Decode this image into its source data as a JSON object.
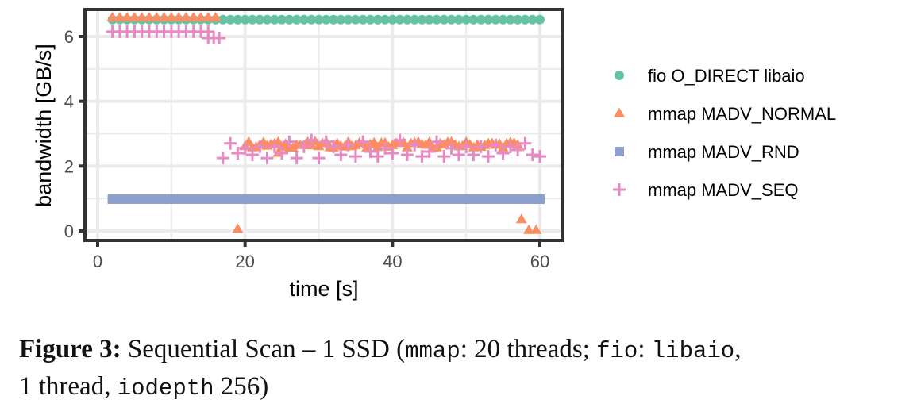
{
  "chart_data": {
    "type": "scatter",
    "title": "",
    "xlabel": "time [s]",
    "ylabel": "bandwidth [GB/s]",
    "xlim": [
      -1.5,
      63
    ],
    "ylim": [
      -0.3,
      6.8
    ],
    "xticks": [
      0,
      20,
      40,
      60
    ],
    "yticks": [
      0,
      2,
      4,
      6
    ],
    "grid": true,
    "legend_position": "right",
    "series": [
      {
        "name": "fio O_DIRECT libaio",
        "marker": "circle",
        "color": "#66c2a5",
        "x_range": [
          2,
          60
        ],
        "step": 1,
        "value": 6.52
      },
      {
        "name": "mmap MADV_NORMAL",
        "marker": "triangle",
        "color": "#fc8d62",
        "segments": [
          {
            "x_range": [
              2,
              16
            ],
            "step": 1,
            "value": 6.58
          },
          {
            "x_range": [
              20,
              57
            ],
            "step": 0.5,
            "value": 2.65,
            "jitter": 0.1
          }
        ],
        "outliers": [
          {
            "x": 19,
            "y": 0.05
          },
          {
            "x": 57.5,
            "y": 0.35
          },
          {
            "x": 58.5,
            "y": 0.02
          },
          {
            "x": 59.5,
            "y": 0.02
          },
          {
            "x": 24.5,
            "y": 2.4
          }
        ]
      },
      {
        "name": "mmap MADV_RND",
        "marker": "square",
        "color": "#8da0cb",
        "x_range": [
          2,
          60
        ],
        "step": 0.5,
        "value": 0.98
      },
      {
        "name": "mmap MADV_SEQ",
        "marker": "plus",
        "color": "#e78ac3",
        "segments": [
          {
            "x_range": [
              2,
              15
            ],
            "step": 1,
            "value": 6.15
          },
          {
            "x_range": [
              15,
              16.5
            ],
            "step": 0.75,
            "value": 5.95
          }
        ],
        "points": [
          [
            17,
            2.25
          ],
          [
            18,
            2.7
          ],
          [
            19,
            2.4
          ],
          [
            20,
            2.55
          ],
          [
            21,
            2.35
          ],
          [
            22,
            2.6
          ],
          [
            23,
            2.25
          ],
          [
            24,
            2.6
          ],
          [
            25,
            2.4
          ],
          [
            26,
            2.75
          ],
          [
            27,
            2.25
          ],
          [
            28,
            2.6
          ],
          [
            29,
            2.8
          ],
          [
            30,
            2.25
          ],
          [
            31,
            2.75
          ],
          [
            32,
            2.6
          ],
          [
            33,
            2.35
          ],
          [
            34,
            2.65
          ],
          [
            35,
            2.3
          ],
          [
            36,
            2.75
          ],
          [
            37,
            2.45
          ],
          [
            38,
            2.3
          ],
          [
            39,
            2.55
          ],
          [
            40,
            2.4
          ],
          [
            41,
            2.8
          ],
          [
            42,
            2.35
          ],
          [
            43,
            2.65
          ],
          [
            44,
            2.3
          ],
          [
            45,
            2.45
          ],
          [
            46,
            2.75
          ],
          [
            47,
            2.3
          ],
          [
            48,
            2.55
          ],
          [
            49,
            2.35
          ],
          [
            50,
            2.6
          ],
          [
            51,
            2.35
          ],
          [
            52,
            2.6
          ],
          [
            53,
            2.3
          ],
          [
            54,
            2.65
          ],
          [
            55,
            2.4
          ],
          [
            56,
            2.6
          ],
          [
            57,
            2.5
          ],
          [
            58,
            2.7
          ],
          [
            59,
            2.35
          ],
          [
            60,
            2.3
          ]
        ]
      }
    ]
  },
  "legend": {
    "items": [
      {
        "label": "fio O_DIRECT libaio",
        "marker": "circle",
        "color": "#66c2a5"
      },
      {
        "label": "mmap MADV_NORMAL",
        "marker": "triangle",
        "color": "#fc8d62"
      },
      {
        "label": "mmap MADV_RND",
        "marker": "square",
        "color": "#8da0cb"
      },
      {
        "label": "mmap MADV_SEQ",
        "marker": "plus",
        "color": "#e78ac3"
      }
    ]
  },
  "axes": {
    "x_title": "time [s]",
    "y_title": "bandwidth [GB/s]",
    "x_ticks": [
      "0",
      "20",
      "40",
      "60"
    ],
    "y_ticks": [
      "0",
      "2",
      "4",
      "6"
    ]
  },
  "caption": {
    "label": "Figure 3:",
    "text_1": " Sequential Scan – 1 SSD (",
    "code_1": "mmap",
    "text_2": ": 20 threads; ",
    "code_2": "fio",
    "text_3": ": ",
    "code_3": "libaio",
    "text_4": ",",
    "text_5": "1 thread, ",
    "code_4": "iodepth",
    "text_6": " 256)"
  }
}
